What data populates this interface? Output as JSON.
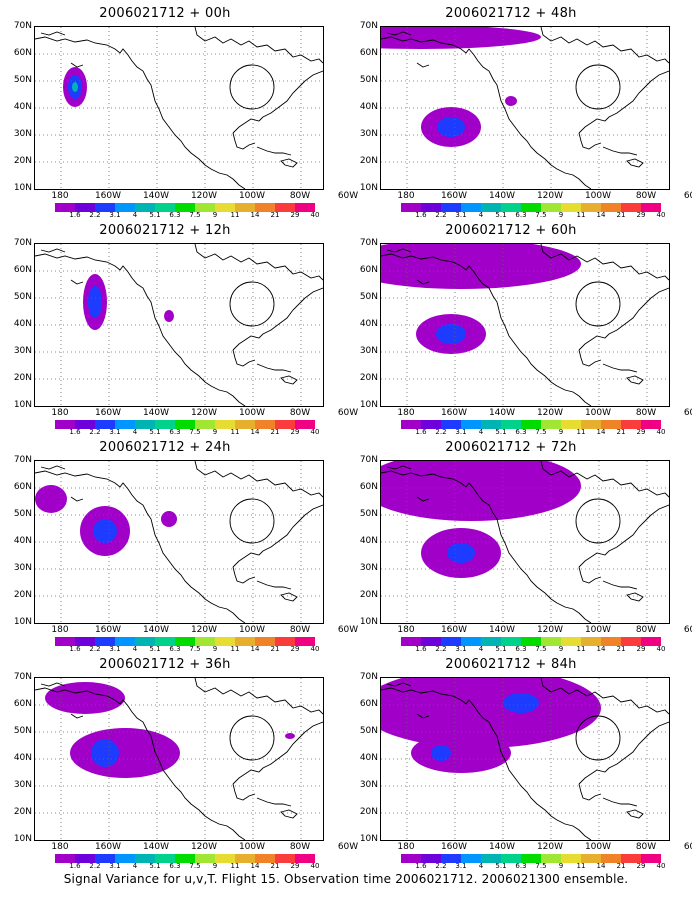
{
  "panels": [
    {
      "title": "2006021712 + 00h"
    },
    {
      "title": "2006021712 + 48h"
    },
    {
      "title": "2006021712 + 12h"
    },
    {
      "title": "2006021712 + 60h"
    },
    {
      "title": "2006021712 + 24h"
    },
    {
      "title": "2006021712 + 72h"
    },
    {
      "title": "2006021712 + 36h"
    },
    {
      "title": "2006021712 + 84h"
    }
  ],
  "lat_labels": [
    "70N",
    "60N",
    "50N",
    "40N",
    "30N",
    "20N",
    "10N"
  ],
  "lon_labels": [
    "180",
    "160W",
    "140W",
    "120W",
    "100W",
    "80W",
    "60W"
  ],
  "colorbar": {
    "labels": [
      "1.6",
      "2.2",
      "3.1",
      "4",
      "5.1",
      "6.3",
      "7.5",
      "9",
      "11",
      "14",
      "21",
      "29",
      "40"
    ],
    "colors": [
      "#a000c8",
      "#6e00dc",
      "#1e3cff",
      "#0096ff",
      "#00b4b4",
      "#00d28c",
      "#00dc00",
      "#a0e632",
      "#e6dc32",
      "#e6af2d",
      "#f08228",
      "#fa3c3c",
      "#f00082"
    ]
  },
  "caption": "Signal Variance for u,v,T. Flight 15. Observation time 2006021712. 2006021300 ensemble."
}
